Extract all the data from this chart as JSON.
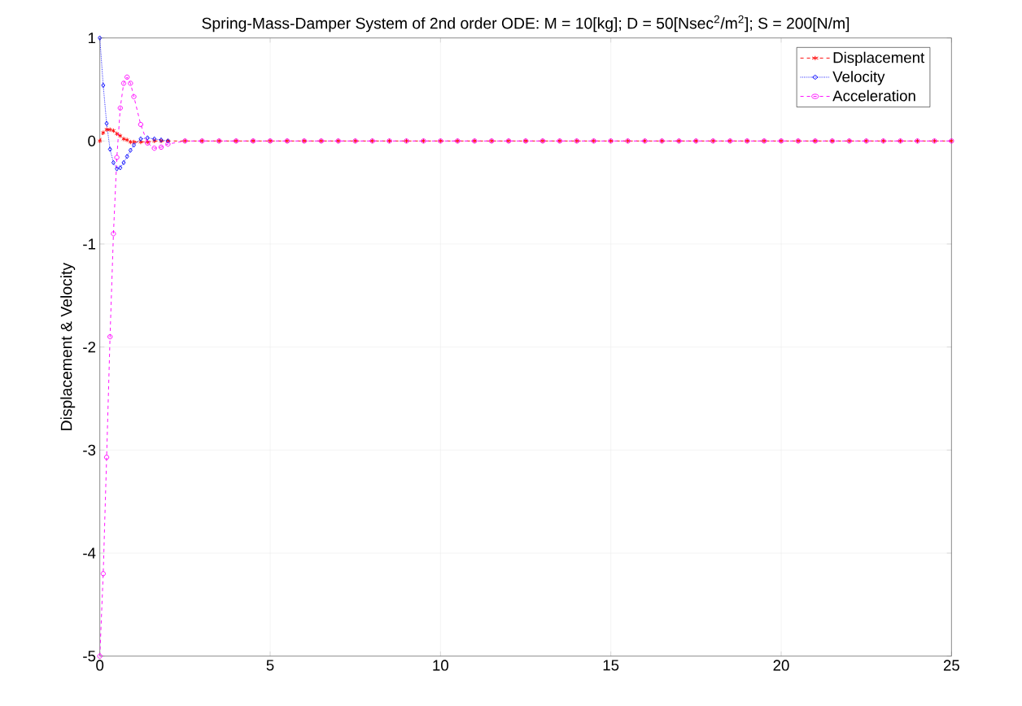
{
  "chart_data": {
    "type": "line",
    "title": "Spring-Mass-Damper System of 2nd order ODE:  M = 10[kg]; D = 50[Nsec$^{2}$/m$^{2}$]; S = 200[N/m]",
    "ylabel": "Displacement & Velocity",
    "x": [
      0,
      0.1,
      0.2,
      0.3,
      0.4,
      0.5,
      0.6,
      0.7,
      0.8,
      0.9,
      1.0,
      1.2,
      1.4,
      1.6,
      1.8,
      2.0,
      2.5,
      3,
      3.5,
      4,
      4.5,
      5,
      5.5,
      6,
      6.5,
      7,
      7.5,
      8,
      8.5,
      9,
      9.5,
      10,
      10.5,
      11,
      11.5,
      12,
      12.5,
      13,
      13.5,
      14,
      14.5,
      15,
      15.5,
      16,
      16.5,
      17,
      17.5,
      18,
      18.5,
      19,
      19.5,
      20,
      20.5,
      21,
      21.5,
      22,
      22.5,
      23,
      23.5,
      24,
      24.5,
      25
    ],
    "series": [
      {
        "name": "Displacement",
        "color": "#ff0000",
        "marker": "cross",
        "line_style": "dashed",
        "values": [
          0,
          0.08,
          0.11,
          0.11,
          0.1,
          0.07,
          0.05,
          0.02,
          0.01,
          -0.01,
          -0.01,
          -0.01,
          -0.01,
          0,
          0,
          0,
          0,
          0,
          0,
          0,
          0,
          0,
          0,
          0,
          0,
          0,
          0,
          0,
          0,
          0,
          0,
          0,
          0,
          0,
          0,
          0,
          0,
          0,
          0,
          0,
          0,
          0,
          0,
          0,
          0,
          0,
          0,
          0,
          0,
          0,
          0,
          0,
          0,
          0,
          0,
          0,
          0,
          0,
          0,
          0,
          0,
          0
        ]
      },
      {
        "name": "Velocity",
        "color": "#0000ff",
        "marker": "diamond",
        "line_style": "dotted",
        "values": [
          1,
          0.54,
          0.17,
          -0.08,
          -0.21,
          -0.27,
          -0.26,
          -0.21,
          -0.15,
          -0.09,
          -0.04,
          0.02,
          0.03,
          0.02,
          0.01,
          0,
          null,
          null,
          null,
          null,
          null,
          null,
          null,
          null,
          null,
          null,
          null,
          null,
          null,
          null,
          null,
          null,
          null,
          null,
          null,
          null,
          null,
          null,
          null,
          null,
          null,
          null,
          null,
          null,
          null,
          null,
          null,
          null,
          null,
          null,
          null,
          null,
          null,
          null,
          null,
          null,
          null,
          null,
          null,
          null,
          null,
          null
        ]
      },
      {
        "name": "Acceleration",
        "color": "#ff00ff",
        "marker": "circle",
        "line_style": "dashed",
        "values": [
          -5,
          -4.2,
          -3.07,
          -1.9,
          -0.9,
          -0.16,
          0.32,
          0.56,
          0.62,
          0.56,
          0.43,
          0.16,
          -0.02,
          -0.07,
          -0.06,
          -0.03,
          0,
          0,
          0,
          0,
          0,
          0,
          0,
          0,
          0,
          0,
          0,
          0,
          0,
          0,
          0,
          0,
          0,
          0,
          0,
          0,
          0,
          0,
          0,
          0,
          0,
          0,
          0,
          0,
          0,
          0,
          0,
          0,
          0,
          0,
          0,
          0,
          0,
          0,
          0,
          0,
          0,
          0,
          0,
          0,
          0,
          0
        ]
      }
    ],
    "xlim": [
      0,
      25
    ],
    "xticks": [
      0,
      5,
      10,
      15,
      20,
      25
    ],
    "ylim": [
      -5,
      1
    ],
    "yticks": [
      -5,
      -4,
      -3,
      -2,
      -1,
      0,
      1
    ],
    "grid": true,
    "legend": "top right"
  }
}
